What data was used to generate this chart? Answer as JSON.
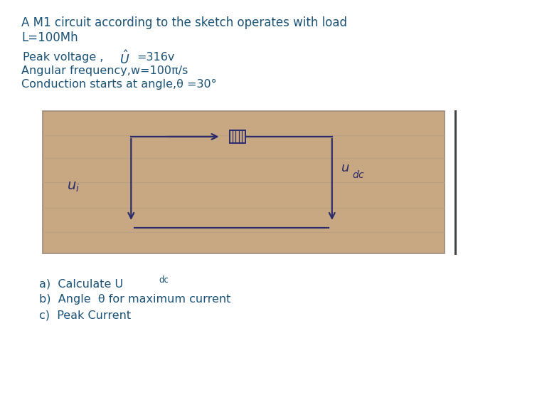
{
  "background_color": "#ffffff",
  "title_line1": "A M1 circuit according to the sketch operates with load",
  "title_line2": "L=100Mh",
  "peak_voltage_label": "Peak voltage ,",
  "peak_voltage_value": "=316v",
  "angular_freq": "Angular frequency,w=100π/s",
  "conduction": "Conduction starts at angle,θ =30°",
  "q_b": "b)  Angle  θ for maximum current",
  "q_c": "c)  Peak Current",
  "text_color": "#1a5276",
  "sketch_bg": "#c8a882",
  "sketch_line_color": "#2c2c6c",
  "sketch_border_color": "#9a8a7a",
  "sketch_ruled_color": "#b8a080",
  "font_size_title": 12,
  "font_size_body": 11.5,
  "font_size_questions": 11.5
}
